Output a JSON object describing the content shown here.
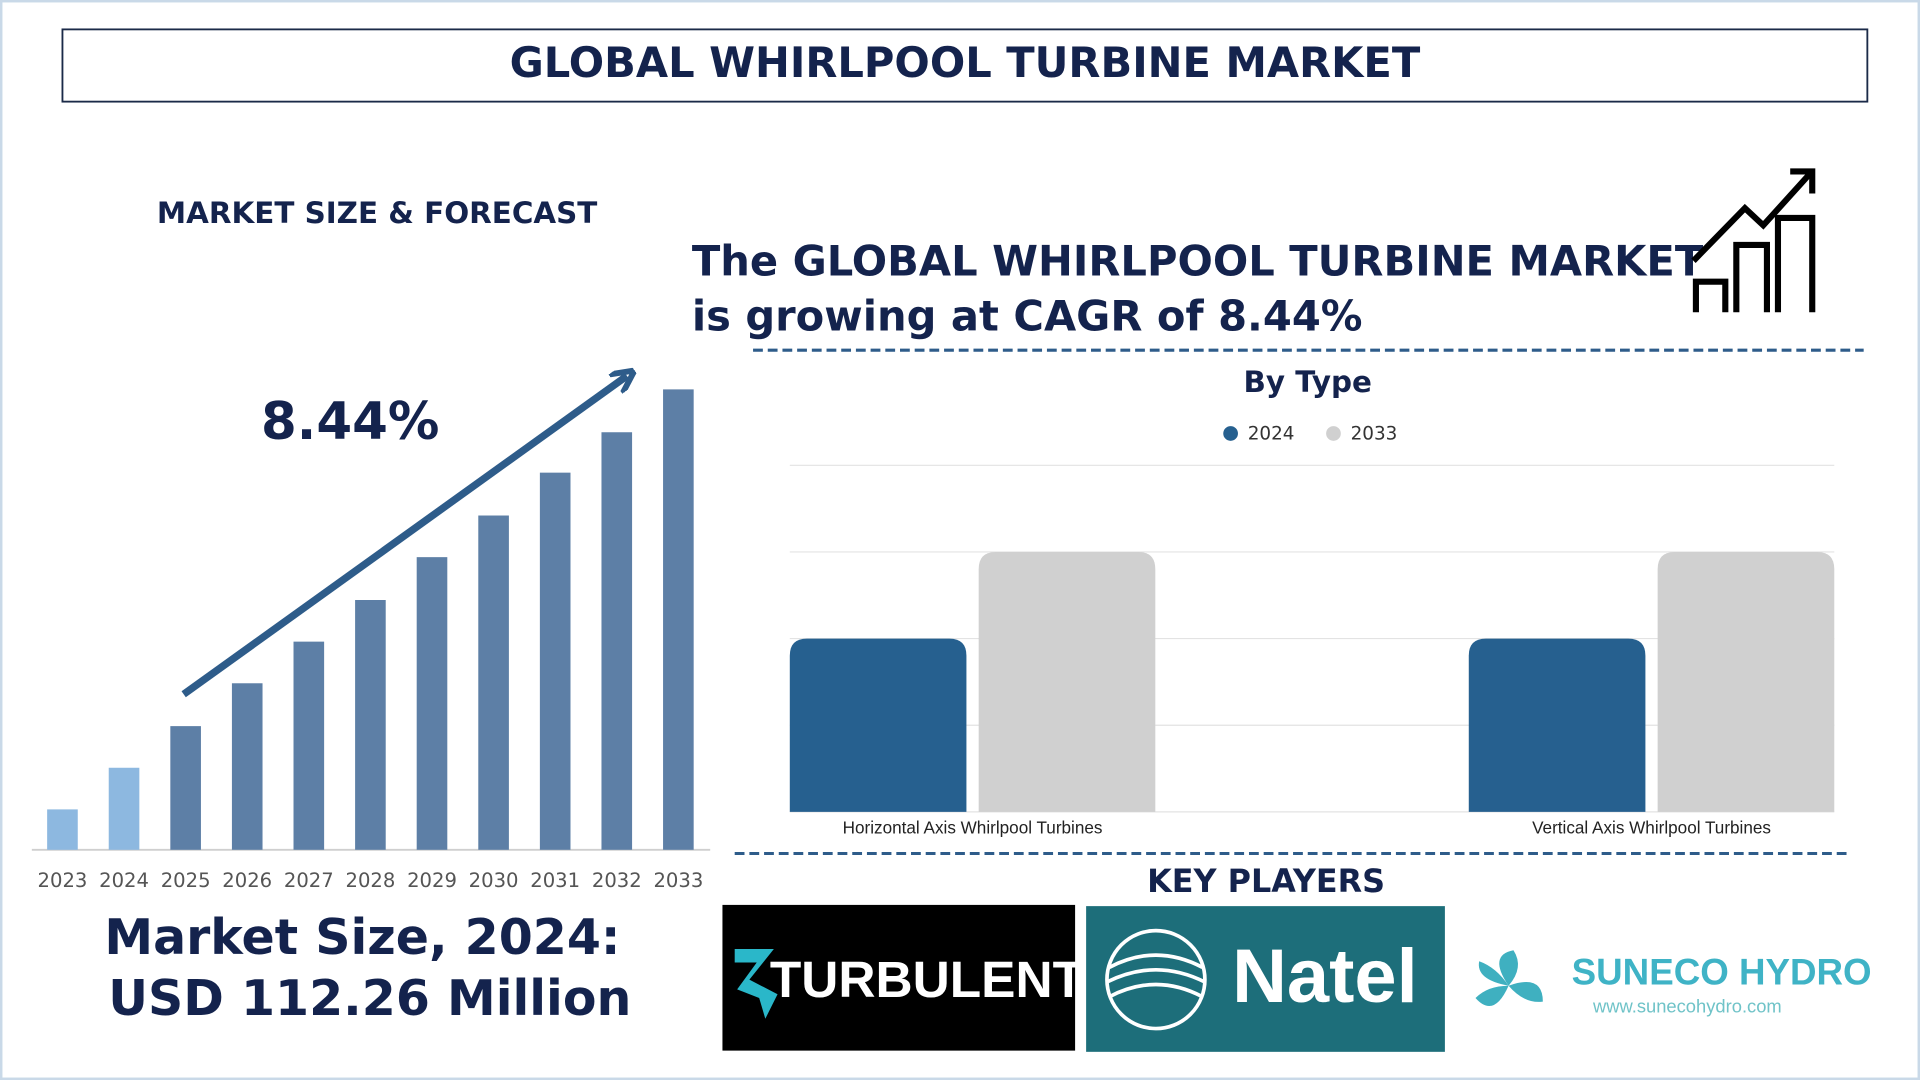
{
  "title": "GLOBAL WHIRLPOOL TURBINE MARKET",
  "forecast": {
    "heading": "MARKET SIZE & FORECAST",
    "cagr_label": "8.44%",
    "market_size_line1": "Market Size, 2024:",
    "market_size_line2": "USD 112.26 Million"
  },
  "headline": {
    "line1": "The GLOBAL WHIRLPOOL TURBINE MARKET",
    "line2": "is growing at CAGR of 8.44%"
  },
  "chart_data": [
    {
      "type": "bar",
      "categories": [
        "2023",
        "2024",
        "2025",
        "2026",
        "2027",
        "2028",
        "2029",
        "2030",
        "2031",
        "2032",
        "2033"
      ],
      "values": [
        33,
        67,
        101,
        136,
        170,
        204,
        239,
        273,
        308,
        341,
        376
      ],
      "colors": [
        "#8db8e0",
        "#8db8e0",
        "#5d7fa6",
        "#5d7fa6",
        "#5d7fa6",
        "#5d7fa6",
        "#5d7fa6",
        "#5d7fa6",
        "#5d7fa6",
        "#5d7fa6",
        "#5d7fa6"
      ],
      "ylim": [
        0,
        400
      ]
    },
    {
      "type": "grouped-bar",
      "title": "By Type",
      "categories": [
        "Horizontal Axis Whirlpool Turbines",
        "Vertical Axis Whirlpool Turbines"
      ],
      "series": [
        {
          "name": "2024",
          "color": "#26608f",
          "values": [
            2,
            2
          ]
        },
        {
          "name": "2033",
          "color": "#d0d0d0",
          "values": [
            3,
            3
          ]
        }
      ],
      "ylim": [
        0,
        4
      ],
      "grid_values": [
        0,
        1,
        2,
        3,
        4
      ],
      "grid": true
    }
  ],
  "key_players": {
    "heading": "KEY PLAYERS",
    "turbulent": "TURBULENT",
    "natel": "Natel",
    "suneco": "SUNECO HYDRO",
    "suneco_url": "www.sunecohydro.com"
  }
}
